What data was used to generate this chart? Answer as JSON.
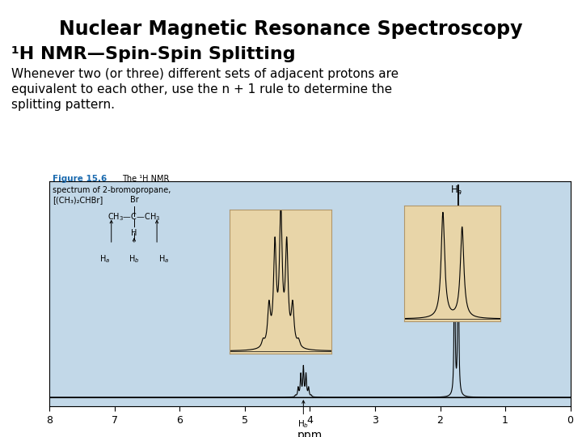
{
  "title1": "Nuclear Magnetic Resonance Spectroscopy",
  "title2": "¹H NMR—Spin-Spin Splitting",
  "body_text": "Whenever two (or three) different sets of adjacent protons are\nequivalent to each other, use the n + 1 rule to determine the\nsplitting pattern.",
  "figure_label": "Figure 15.6",
  "figure_caption_inline": "The ¹H NMR",
  "figure_caption_line2": "spectrum of 2-bromopropane,",
  "figure_caption_line3": "[(CH₃)₂CHBr]",
  "bg_color": "#ffffff",
  "spectrum_bg": "#c2d8e8",
  "inset_bg": "#e8d5a8",
  "xlabel": "ppm",
  "Ha_ppm": 1.75,
  "Hb_ppm": 4.1,
  "title_fontsize": 17,
  "subtitle_fontsize": 16,
  "body_fontsize": 11,
  "fig_label_color": "#1a6aaf"
}
